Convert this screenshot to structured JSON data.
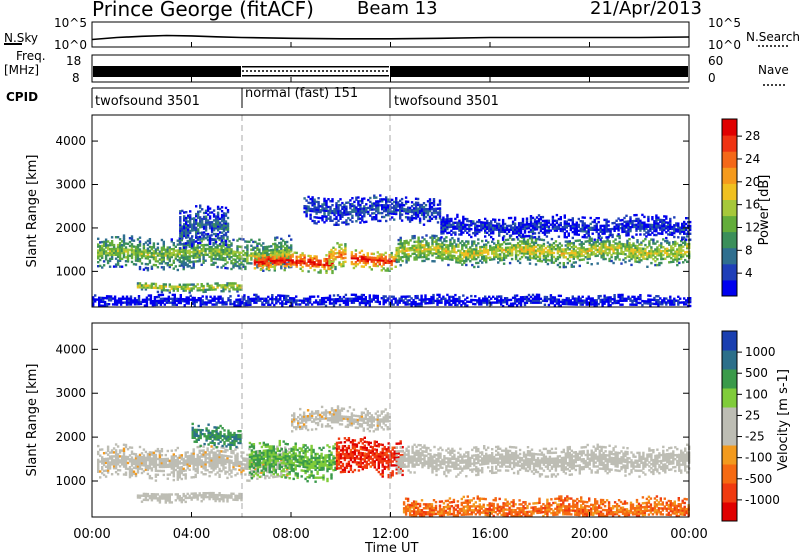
{
  "header": {
    "title": "Prince George (fitACF)",
    "beam": "Beam 13",
    "date": "21/Apr/2013"
  },
  "noise_panel": {
    "left_label": "N.Sky",
    "right_label": "N.Search",
    "y_top": "10^5",
    "y_bottom": "10^0",
    "color": "#000000",
    "series_key": "noise"
  },
  "freq_panel": {
    "left_label_1": "Freq.",
    "left_label_2": "[MHz]",
    "right_label": "Nave",
    "y_left_ticks": [
      "18",
      "8"
    ],
    "y_right_ticks": [
      "60",
      "0"
    ]
  },
  "cpid_panel": {
    "label": "CPID",
    "segments": [
      {
        "name": "twofsound 3501",
        "start": 0,
        "end": 6
      },
      {
        "name": "normal (fast) 151",
        "start": 6,
        "end": 12
      },
      {
        "name": "twofsound 3501",
        "start": 12,
        "end": 24
      }
    ]
  },
  "x_axis": {
    "ticks": [
      "00:00",
      "04:00",
      "08:00",
      "12:00",
      "16:00",
      "20:00",
      "00:00"
    ],
    "tick_hours": [
      0,
      4,
      8,
      12,
      16,
      20,
      24
    ],
    "label": "Time UT"
  },
  "chart_data": [
    {
      "type": "line",
      "name": "noise",
      "x_unit": "hour UT",
      "x": [
        0,
        1,
        2,
        3,
        4,
        5,
        6,
        8,
        10,
        12,
        14,
        16,
        18,
        20,
        22,
        24
      ],
      "y": [
        20,
        60,
        120,
        180,
        150,
        90,
        60,
        40,
        30,
        30,
        40,
        60,
        60,
        60,
        60,
        80
      ],
      "ylim": [
        1,
        100000
      ],
      "log_scale": true
    },
    {
      "type": "heatmap",
      "ylabel": "Slant Range [km]",
      "yticks": [
        1000,
        2000,
        3000,
        4000
      ],
      "ylim": [
        180,
        4600
      ],
      "xlim": [
        0,
        24
      ],
      "colorbar": {
        "label": "Power [dB]",
        "ticks": [
          "4",
          "8",
          "12",
          "16",
          "20",
          "24",
          "28"
        ],
        "colors": [
          "#0000ee",
          "#1f3fb8",
          "#2f6f8f",
          "#3b8f5a",
          "#63ad3a",
          "#a6c83a",
          "#f0c020",
          "#f59a1c",
          "#f46818",
          "#ef3312",
          "#e00000"
        ]
      },
      "bands": [
        {
          "x0": 0.2,
          "x1": 8.0,
          "center": 1400,
          "width": 360,
          "level": 0.45
        },
        {
          "x0": 6.5,
          "x1": 9.7,
          "center": 1200,
          "width": 220,
          "level": 0.97
        },
        {
          "x0": 9.5,
          "x1": 10.2,
          "center": 1350,
          "width": 300,
          "level": 0.75
        },
        {
          "x0": 10.4,
          "x1": 12.2,
          "center": 1250,
          "width": 220,
          "level": 0.93
        },
        {
          "x0": 12.2,
          "x1": 24.0,
          "center": 1450,
          "width": 320,
          "level": 0.55
        },
        {
          "x0": 1.8,
          "x1": 6.0,
          "center": 620,
          "width": 110,
          "level": 0.55
        },
        {
          "x0": 3.5,
          "x1": 5.5,
          "center": 2000,
          "width": 450,
          "level": 0.2
        },
        {
          "x0": 8.5,
          "x1": 14.0,
          "center": 2400,
          "width": 300,
          "level": 0.15
        },
        {
          "x0": 14.0,
          "x1": 24.0,
          "center": 2000,
          "width": 250,
          "level": 0.1
        },
        {
          "x0": 0.0,
          "x1": 24.0,
          "center": 300,
          "width": 150,
          "level": 0.05
        }
      ]
    },
    {
      "type": "heatmap",
      "ylabel": "Slant Range [km]",
      "yticks": [
        1000,
        2000,
        3000,
        4000
      ],
      "ylim": [
        180,
        4600
      ],
      "xlim": [
        0,
        24
      ],
      "colorbar": {
        "label": "Velocity [m s-1]",
        "ticks": [
          "1000",
          "500",
          "100",
          "25",
          "-25",
          "-100",
          "-500",
          "-1000"
        ],
        "colors": [
          "#1a3fb0",
          "#2c6f8a",
          "#3a9a4a",
          "#80cc3a",
          "#bdbdb4",
          "#bdbdb4",
          "#f29a1e",
          "#f56a12",
          "#f03a10",
          "#e00000"
        ]
      },
      "bands": [
        {
          "x0": 0.2,
          "x1": 8.0,
          "center": 1400,
          "width": 360,
          "vel": -0.05
        },
        {
          "x0": 4.0,
          "x1": 6.0,
          "center": 2000,
          "width": 250,
          "vel": 0.6
        },
        {
          "x0": 6.3,
          "x1": 9.8,
          "center": 1450,
          "width": 420,
          "vel": 0.4
        },
        {
          "x0": 9.8,
          "x1": 12.5,
          "center": 1550,
          "width": 420,
          "vel": -0.75
        },
        {
          "x0": 8.0,
          "x1": 12.0,
          "center": 2400,
          "width": 250,
          "vel": -0.05
        },
        {
          "x0": 12.2,
          "x1": 24.0,
          "center": 1450,
          "width": 320,
          "vel": 0.0
        },
        {
          "x0": 1.8,
          "x1": 6.0,
          "center": 620,
          "width": 110,
          "vel": 0.0
        },
        {
          "x0": 12.5,
          "x1": 24.0,
          "center": 300,
          "width": 300,
          "vel": -0.5
        }
      ]
    }
  ]
}
